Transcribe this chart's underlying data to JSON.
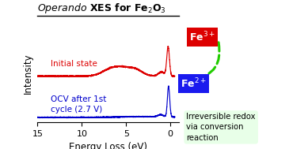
{
  "title_italic": "Operando",
  "title_rest": " XES for Fe$_2$O$_3$",
  "xlabel": "Energy Loss (eV)",
  "ylabel": "Intensity",
  "xlim": [
    15,
    -1
  ],
  "red_label": "Initial state",
  "blue_label": "OCV after 1st\ncycle (2.7 V)",
  "fe3_label": "Fe$^{3+}$",
  "fe2_label": "Fe$^{2+}$",
  "annotation": "Irreversible redox\nvia conversion\nreaction",
  "red_color": "#dd0000",
  "blue_color": "#0000cc",
  "green_color": "#22cc00",
  "fe3_bg": "#dd0000",
  "fe2_bg": "#1a1aee",
  "annotation_bg": "#e8ffe8",
  "background": "#ffffff",
  "xticks": [
    15,
    10,
    5,
    0
  ]
}
